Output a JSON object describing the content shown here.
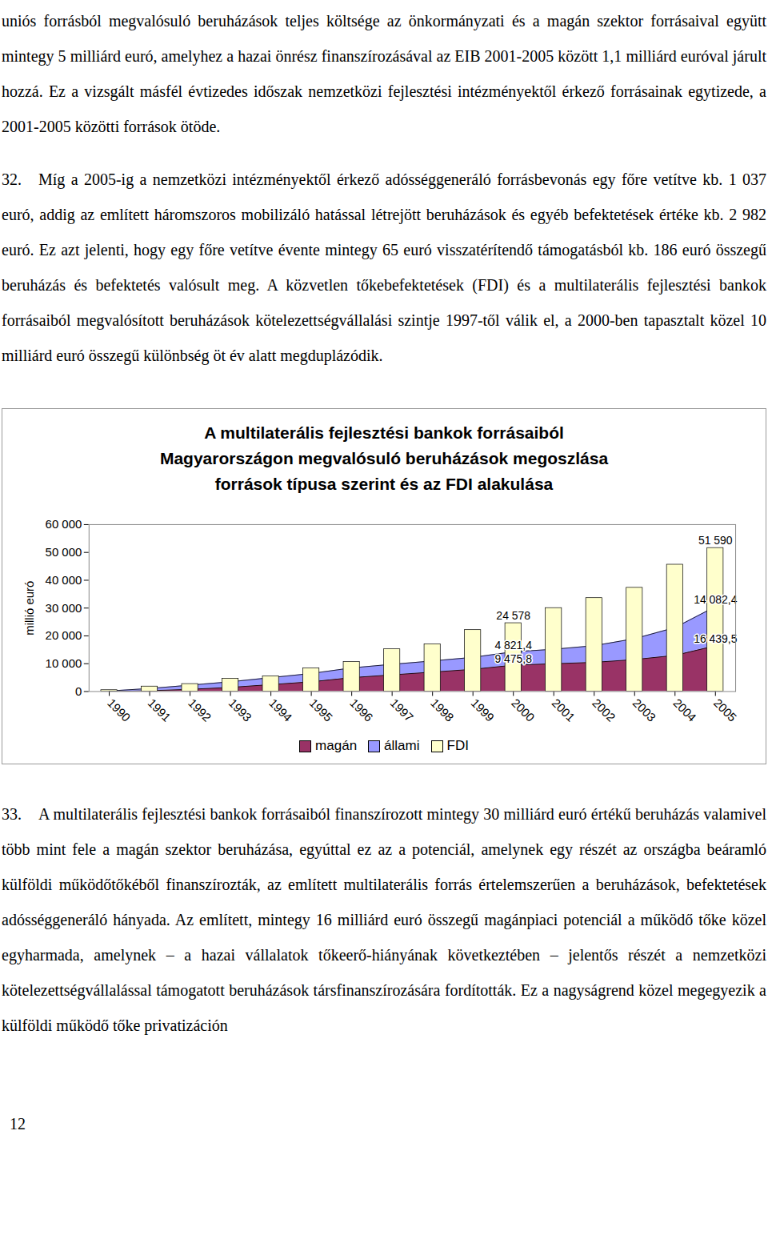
{
  "paragraphs_before": [
    {
      "number": null,
      "text": "uniós forrásból megvalósuló beruházások teljes költsége az önkormányzati és a magán szektor forrásaival együtt mintegy 5 milliárd euró, amelyhez a hazai önrész finanszírozásával az EIB 2001-2005 között 1,1 milliárd euróval járult hozzá. Ez a vizsgált másfél évtizedes időszak nemzetközi fejlesztési intézményektől érkező forrásainak egytizede, a 2001-2005 közötti források ötöde."
    },
    {
      "number": "32.",
      "text": "Míg a 2005-ig a nemzetközi intézményektől érkező adósséggeneráló forrásbevonás egy főre vetítve kb. 1 037 euró, addig az említett háromszoros mobilizáló hatással létrejött beruházások és egyéb befektetések értéke kb. 2 982 euró. Ez azt jelenti, hogy egy főre vetítve évente mintegy 65 euró visszatérítendő támogatásból kb. 186 euró összegű beruházás és befektetés valósult meg. A közvetlen tőkebefektetések (FDI) és a multilaterális fejlesztési bankok forrásaiból megvalósított beruházások kötelezettségvállalási szintje 1997-től válik el, a 2000-ben tapasztalt közel 10 milliárd euró összegű különbség öt év alatt megduplázódik."
    }
  ],
  "chart_data": {
    "type": "area",
    "stacked": true,
    "title": "A multilaterális fejlesztési bankok forrásaiból\nMagyarországon megvalósuló beruházások megoszlása\nforrások típusa szerint és az FDI alakulása",
    "y_label": "millió euró",
    "categories": [
      "1990",
      "1991",
      "1992",
      "1993",
      "1994",
      "1995",
      "1996",
      "1997",
      "1998",
      "1999",
      "2000",
      "2001",
      "2002",
      "2003",
      "2004",
      "2005"
    ],
    "series": [
      {
        "name": "magán",
        "color": "#993366",
        "values": [
          0,
          300,
          800,
          1500,
          2500,
          3500,
          5000,
          6000,
          7000,
          8000,
          9475.8,
          10000,
          10500,
          11500,
          13000,
          16439.5
        ],
        "value_labels": [
          null,
          null,
          null,
          null,
          null,
          null,
          null,
          null,
          null,
          null,
          "9 475,8",
          null,
          null,
          null,
          null,
          "16 439,5"
        ]
      },
      {
        "name": "állami",
        "color": "#9999ff",
        "values": [
          200,
          800,
          1500,
          2000,
          2500,
          3000,
          3500,
          3800,
          4000,
          4300,
          4821.4,
          5200,
          6000,
          7500,
          10000,
          14082.4
        ],
        "value_labels": [
          null,
          null,
          null,
          null,
          null,
          null,
          null,
          null,
          null,
          null,
          "4 821,4",
          null,
          null,
          null,
          null,
          "14 082,4"
        ]
      },
      {
        "name": "FDI",
        "color": "#ffffcc",
        "type": "bar",
        "values": [
          500,
          1800,
          2700,
          4600,
          5500,
          8300,
          10600,
          15200,
          17000,
          22100,
          24578,
          30000,
          33600,
          37300,
          45600,
          51590
        ],
        "value_labels": [
          null,
          null,
          null,
          null,
          null,
          null,
          null,
          null,
          null,
          null,
          "24 578",
          null,
          null,
          null,
          null,
          "51 590"
        ]
      }
    ],
    "ylim": [
      0,
      60000
    ],
    "yticks": [
      0,
      {
        "value": 10000,
        "label": "10 000"
      },
      {
        "value": 20000,
        "label": "20 000"
      },
      {
        "value": 30000,
        "label": "30 000"
      },
      {
        "value": 40000,
        "label": "40 000"
      },
      {
        "value": 50000,
        "label": "50 000"
      },
      {
        "value": 60000,
        "label": "60 000"
      }
    ],
    "grid": false,
    "legend": "bottom"
  },
  "paragraphs_after": [
    {
      "number": "33.",
      "text": "A multilaterális fejlesztési bankok forrásaiból finanszírozott mintegy 30 milliárd euró értékű beruházás valamivel több mint fele a magán szektor beruházása, egyúttal ez az a potenciál, amelynek egy részét az országba beáramló külföldi működőtőkéből finanszírozták, az említett multilaterális forrás értelemszerűen a beruházások, befektetések adósséggeneráló hányada. Az említett, mintegy 16 milliárd euró összegű magánpiaci potenciál a működő tőke közel egyharmada, amelynek – a hazai vállalatok tőkeerő-hiányának következtében – jelentős részét a nemzetközi kötelezettségvállalással támogatott beruházások társfinanszírozására fordították. Ez a nagyságrend közel megegyezik a külföldi működő tőke privatizáción"
    }
  ],
  "page_number": 12
}
